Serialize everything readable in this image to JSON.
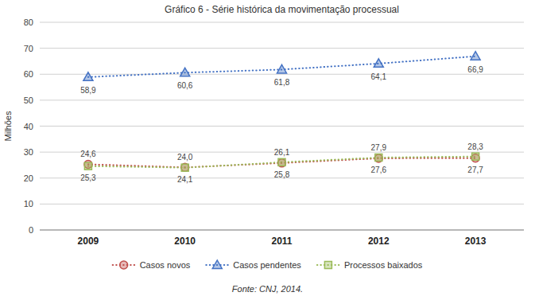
{
  "chart_data": {
    "type": "line",
    "title": "Gráfico 6 - Série histórica da movimentação processual",
    "source": "Fonte: CNJ, 2014.",
    "ylabel": "Milhões",
    "categories": [
      "2009",
      "2010",
      "2011",
      "2012",
      "2013"
    ],
    "series": [
      {
        "name": "Casos novos",
        "color": "#c0504d",
        "marker": "circle",
        "line_style": "dotted",
        "values": [
          25.3,
          24.1,
          25.8,
          27.6,
          27.7
        ],
        "value_labels": [
          "25,3",
          "24,1",
          "25,8",
          "27,6",
          "27,7"
        ]
      },
      {
        "name": "Casos pendentes",
        "color": "#4472c4",
        "marker": "triangle",
        "line_style": "dotted",
        "values": [
          58.9,
          60.6,
          61.8,
          64.1,
          66.9
        ],
        "value_labels": [
          "58,9",
          "60,6",
          "61,8",
          "64,1",
          "66,9"
        ]
      },
      {
        "name": "Processos baixados",
        "color": "#9bbb59",
        "marker": "square",
        "line_style": "dotted",
        "values": [
          24.6,
          24.0,
          26.1,
          27.9,
          28.3
        ],
        "value_labels": [
          "24,6",
          "24,0",
          "26,1",
          "27,9",
          "28,3"
        ]
      }
    ],
    "ylim": [
      0,
      80
    ],
    "yticks": [
      0,
      10,
      20,
      30,
      40,
      50,
      60,
      70,
      80
    ],
    "grid": true,
    "legend": "bottom",
    "data_labels": true
  }
}
